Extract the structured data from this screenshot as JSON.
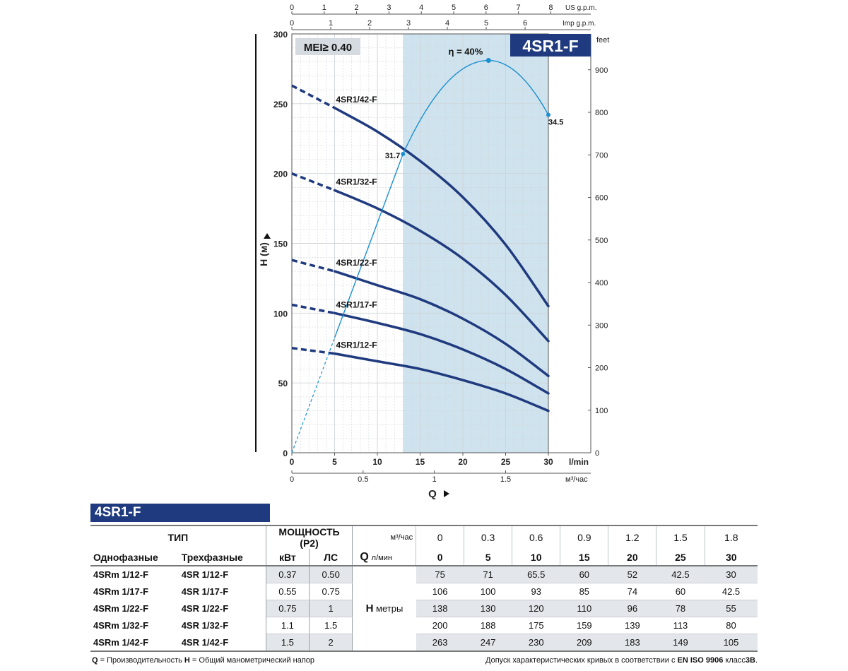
{
  "chart_data": {
    "type": "line",
    "title": "4SR1-F",
    "mei_badge": "MEI≥ 0.40",
    "ylabel": "H (м)",
    "xlabel": "Q",
    "x_lmin_label": "l/min",
    "x_m3_label": "м³/час",
    "y_feet_label": "feet",
    "us_gpm_label": "US g.p.m.",
    "imp_gpm_label": "Imp g.p.m.",
    "xlim": [
      0,
      30
    ],
    "ylim": [
      0,
      300
    ],
    "x_ticks": [
      "0",
      "5",
      "10",
      "15",
      "20",
      "25",
      "30"
    ],
    "y_ticks": [
      "0",
      "50",
      "100",
      "150",
      "200",
      "250",
      "300"
    ],
    "feet_ticks": [
      "0",
      "100",
      "200",
      "300",
      "400",
      "500",
      "600",
      "700",
      "800",
      "900"
    ],
    "m3_ticks": [
      "0",
      "0.5",
      "1",
      "1.5"
    ],
    "us_gpm_ticks": [
      "0",
      "1",
      "2",
      "3",
      "4",
      "5",
      "6",
      "7",
      "8"
    ],
    "imp_gpm_ticks": [
      "0",
      "1",
      "2",
      "3",
      "4",
      "5",
      "6"
    ],
    "recommended_range": [
      13,
      30
    ],
    "x": [
      0,
      5,
      10,
      15,
      20,
      25,
      30
    ],
    "series": [
      {
        "name": "4SR1/12-F",
        "values": [
          75,
          71,
          65.5,
          60,
          52,
          42.5,
          30
        ]
      },
      {
        "name": "4SR1/17-F",
        "values": [
          106,
          100,
          93,
          85,
          74,
          60,
          42.5
        ]
      },
      {
        "name": "4SR1/22-F",
        "values": [
          138,
          130,
          120,
          110,
          96,
          78,
          55
        ]
      },
      {
        "name": "4SR1/32-F",
        "values": [
          200,
          188,
          175,
          159,
          139,
          113,
          80
        ]
      },
      {
        "name": "4SR1/42-F",
        "values": [
          263,
          247,
          230,
          209,
          183,
          149,
          105
        ]
      }
    ],
    "efficiency": {
      "label": "η = 40%",
      "peak": {
        "x": 23,
        "y": 281
      },
      "points": [
        {
          "x": 13,
          "y": 214,
          "label": "31.7"
        },
        {
          "x": 30,
          "y": 242,
          "label": "34.5"
        }
      ]
    }
  },
  "table": {
    "banner": "4SR1-F",
    "type_header": "ТИП",
    "power_header": "МОЩНОСТЬ (P2)",
    "m3_unit": "м³/час",
    "q_label": "Q",
    "lmin_unit": "л/мин",
    "single_phase": "Однофазные",
    "three_phase": "Трехфазные",
    "kw": "кВт",
    "hp": "ЛС",
    "h_label": "H",
    "h_unit": "метры",
    "flow_m3": [
      "0",
      "0.3",
      "0.6",
      "0.9",
      "1.2",
      "1.5",
      "1.8"
    ],
    "flow_lmin": [
      "0",
      "5",
      "10",
      "15",
      "20",
      "25",
      "30"
    ],
    "rows": [
      {
        "single": "4SRm 1/12-F",
        "three": "4SR 1/12-F",
        "kw": "0.37",
        "hp": "0.50",
        "h": [
          "75",
          "71",
          "65.5",
          "60",
          "52",
          "42.5",
          "30"
        ]
      },
      {
        "single": "4SRm 1/17-F",
        "three": "4SR 1/17-F",
        "kw": "0.55",
        "hp": "0.75",
        "h": [
          "106",
          "100",
          "93",
          "85",
          "74",
          "60",
          "42.5"
        ]
      },
      {
        "single": "4SRm 1/22-F",
        "three": "4SR 1/22-F",
        "kw": "0.75",
        "hp": "1",
        "h": [
          "138",
          "130",
          "120",
          "110",
          "96",
          "78",
          "55"
        ]
      },
      {
        "single": "4SRm 1/32-F",
        "three": "4SR 1/32-F",
        "kw": "1.1",
        "hp": "1.5",
        "h": [
          "200",
          "188",
          "175",
          "159",
          "139",
          "113",
          "80"
        ]
      },
      {
        "single": "4SRm 1/42-F",
        "three": "4SR 1/42-F",
        "kw": "1.5",
        "hp": "2",
        "h": [
          "263",
          "247",
          "230",
          "209",
          "183",
          "149",
          "105"
        ]
      }
    ]
  },
  "footer": {
    "q_key": "Q",
    "q_desc": " = Производительность  ",
    "h_key": "H",
    "h_desc": " = Общий манометрический напор",
    "right_text": "Допуск характеристических кривых в соответствии с ",
    "right_std": "EN ISO 9906",
    "right_class": " класс",
    "right_grade": "3B",
    "right_end": "."
  },
  "colors": {
    "curve": "#1f3a7e",
    "efficiency": "#1a8fd0",
    "range_fill": "#cfe3ee",
    "grid": "#cfd3d8",
    "badge_bg": "#1f3a7e"
  }
}
